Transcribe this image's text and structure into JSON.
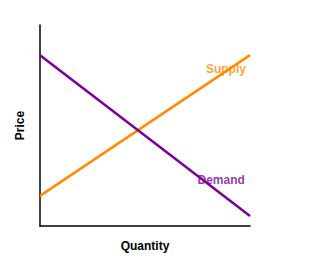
{
  "chart_data": {
    "type": "line",
    "xlabel": "Quantity",
    "ylabel": "Price",
    "xlim": [
      0,
      10
    ],
    "ylim": [
      0,
      10
    ],
    "tick_labels": false,
    "grid": false,
    "series": [
      {
        "name": "Supply",
        "color": "#FF8C00",
        "x": [
          0,
          10
        ],
        "values": [
          1.5,
          8.5
        ]
      },
      {
        "name": "Demand",
        "color": "#7B0099",
        "x": [
          0,
          10
        ],
        "values": [
          8.5,
          0.5
        ]
      }
    ],
    "annotations": [
      {
        "text": "Supply",
        "x": 7.9,
        "y": 7.8,
        "color": "#FF8C00"
      },
      {
        "text": "Demand",
        "x": 7.5,
        "y": 2.3,
        "color": "#7B0099"
      }
    ]
  }
}
